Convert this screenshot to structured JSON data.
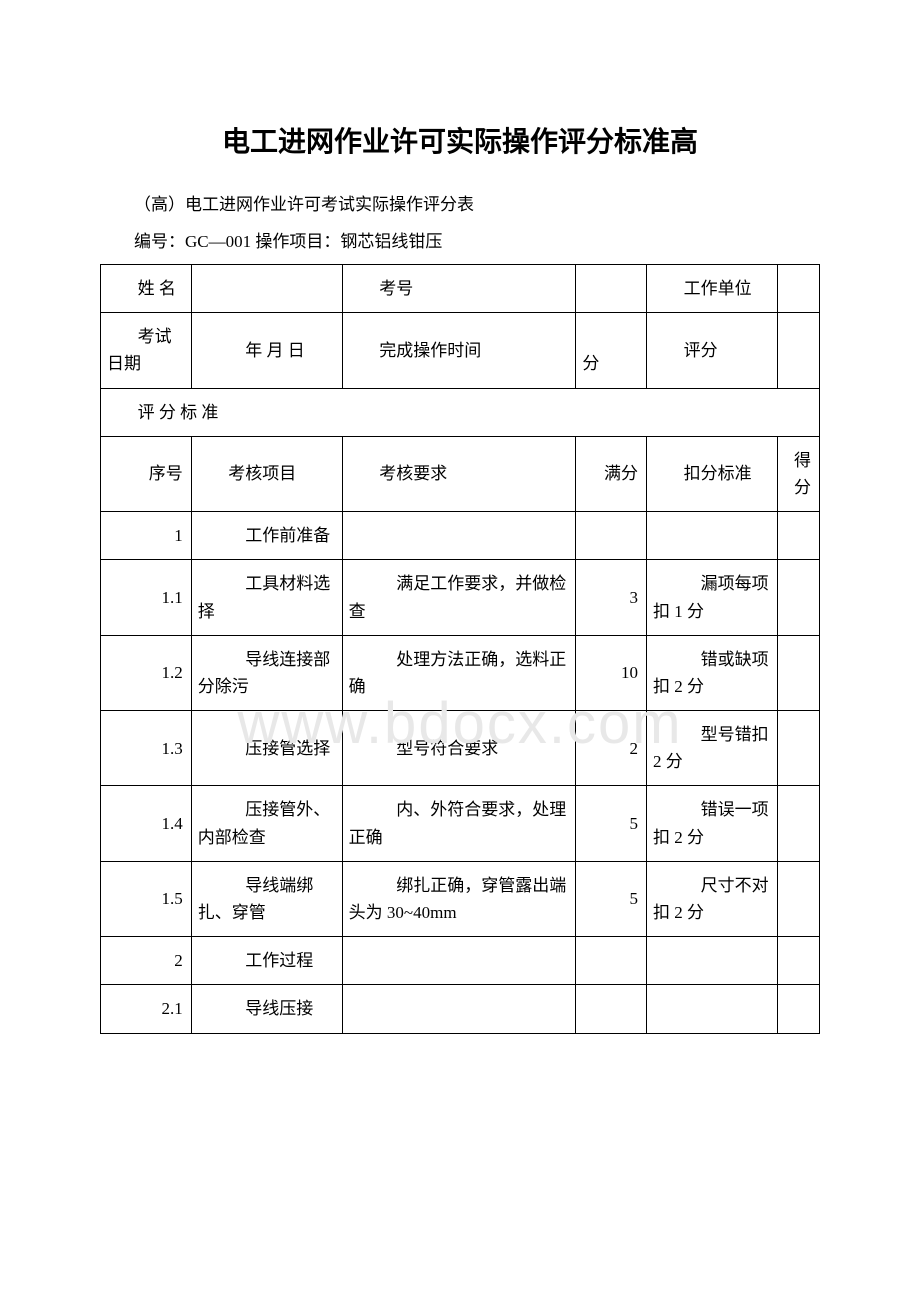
{
  "page_title": "电工进网作业许可实际操作评分标准高",
  "subtitle": "（高）电工进网作业许可考试实际操作评分表",
  "code_line": "编号：GC—001 操作项目：钢芯铝线钳压",
  "watermark": "www.bdocx.com",
  "header1": {
    "name_label": "姓 名",
    "exam_num_label": "考号",
    "unit_label": "工作单位"
  },
  "header2": {
    "date_label": "考试日期",
    "date_value": "　年 月 日",
    "time_label": "完成操作时间",
    "time_value": "　分",
    "score_label": "评分"
  },
  "criteria_header": "评 分 标 准",
  "columns": {
    "seq": "序号",
    "item": "考核项目",
    "req": "考核要求",
    "full": "满分",
    "deduct": "扣分标准",
    "score": "得分"
  },
  "rows": [
    {
      "seq": "1",
      "item": "　工作前准备",
      "req": "",
      "full": "",
      "deduct": "",
      "score": ""
    },
    {
      "seq": "1.1",
      "item": "　工具材料选择",
      "req": "　满足工作要求，并做检查",
      "full": "3",
      "deduct": "　漏项每项扣 1 分",
      "score": ""
    },
    {
      "seq": "1.2",
      "item": "　导线连接部分除污",
      "req": "　处理方法正确，选料正确",
      "full": "10",
      "deduct": "　错或缺项扣 2 分",
      "score": ""
    },
    {
      "seq": "1.3",
      "item": "　压接管选择",
      "req": "　型号符合要求",
      "full": "2",
      "deduct": "　型号错扣 2 分",
      "score": ""
    },
    {
      "seq": "1.4",
      "item": "　压接管外、内部检查",
      "req": "　内、外符合要求，处理正确",
      "full": "5",
      "deduct": "　错误一项扣 2 分",
      "score": ""
    },
    {
      "seq": "1.5",
      "item": "　导线端绑扎、穿管",
      "req": "　绑扎正确，穿管露出端头为 30~40mm",
      "full": "5",
      "deduct": "　尺寸不对扣 2 分",
      "score": ""
    },
    {
      "seq": "2",
      "item": "　工作过程",
      "req": "",
      "full": "",
      "deduct": "",
      "score": ""
    },
    {
      "seq": "2.1",
      "item": "　导线压接",
      "req": "",
      "full": "",
      "deduct": "",
      "score": ""
    }
  ]
}
